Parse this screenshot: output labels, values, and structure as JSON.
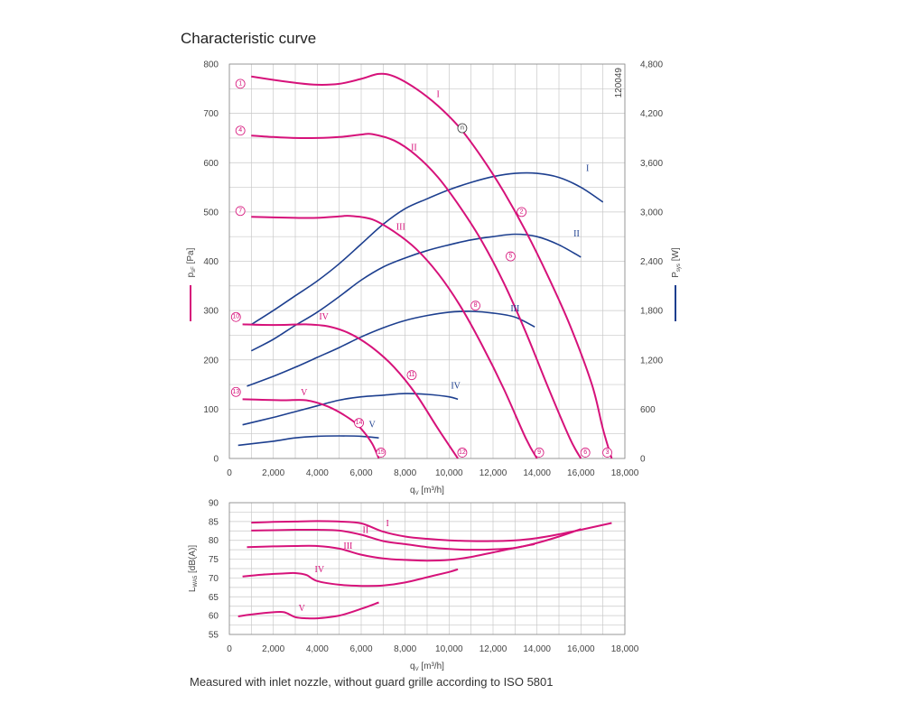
{
  "title": "Characteristic curve",
  "footnote": "Measured with inlet nozzle, without guard grille according to ISO 5801",
  "chart_data": [
    {
      "type": "line",
      "id": "pressure-power",
      "xlabel_main": "q",
      "xlabel_sub": "V",
      "xlabel_unit": " [m³/h]",
      "ylabel_left_main": "p",
      "ylabel_left_sub": "sF",
      "ylabel_left_unit": " [Pa]",
      "ylabel_right_main": "P",
      "ylabel_right_sub": "sys",
      "ylabel_right_unit": " [W]",
      "code": "120049",
      "xlim": [
        0,
        18000
      ],
      "ylim_left": [
        0,
        800
      ],
      "ylim_right": [
        0,
        4800
      ],
      "x_ticks": [
        "0",
        "2,000",
        "4,000",
        "6,000",
        "8,000",
        "10,000",
        "12,000",
        "14,000",
        "16,000",
        "18,000"
      ],
      "y_ticks_left": [
        "0",
        "100",
        "200",
        "300",
        "400",
        "500",
        "600",
        "700",
        "800"
      ],
      "y_ticks_right": [
        "0",
        "600",
        "1,200",
        "1,800",
        "2,400",
        "3,000",
        "3,600",
        "4,200",
        "4,800"
      ],
      "grid": true,
      "pressure_series": [
        {
          "name": "I",
          "x": [
            1000,
            2000,
            3000,
            4000,
            5000,
            6000,
            6800,
            7500,
            8500,
            9500,
            10500,
            11500,
            12500,
            13500,
            14500,
            15500,
            16500,
            17000,
            17400
          ],
          "y": [
            775,
            768,
            762,
            758,
            760,
            770,
            780,
            775,
            750,
            715,
            670,
            610,
            540,
            460,
            370,
            270,
            150,
            60,
            0
          ]
        },
        {
          "name": "II",
          "x": [
            1000,
            2000,
            3000,
            4000,
            5000,
            6000,
            6500,
            7500,
            8500,
            9500,
            10500,
            11500,
            12500,
            13500,
            14500,
            15500,
            16000
          ],
          "y": [
            655,
            652,
            650,
            650,
            652,
            657,
            658,
            645,
            615,
            570,
            510,
            440,
            355,
            255,
            145,
            40,
            0
          ]
        },
        {
          "name": "III",
          "x": [
            1000,
            2000,
            3000,
            4000,
            5000,
            5500,
            6500,
            7500,
            8500,
            9500,
            10500,
            11500,
            12500,
            13500,
            14000
          ],
          "y": [
            490,
            489,
            488,
            488,
            491,
            492,
            485,
            460,
            425,
            375,
            310,
            230,
            140,
            40,
            0
          ]
        },
        {
          "name": "IV",
          "x": [
            600,
            1500,
            2500,
            3500,
            4500,
            5500,
            6500,
            7500,
            8500,
            9500,
            10400
          ],
          "y": [
            272,
            271,
            271,
            272,
            268,
            253,
            225,
            185,
            130,
            60,
            0
          ]
        },
        {
          "name": "V",
          "x": [
            600,
            1500,
            2500,
            3500,
            4500,
            5500,
            6000,
            6500,
            6800
          ],
          "y": [
            120,
            119,
            118,
            118,
            105,
            80,
            60,
            30,
            0
          ]
        }
      ],
      "power_series": [
        {
          "name": "I",
          "x": [
            1000,
            2000,
            3000,
            4000,
            5000,
            6000,
            7000,
            8000,
            9000,
            10000,
            11000,
            12000,
            13000,
            14000,
            15000,
            16000,
            17000
          ],
          "y": [
            1630,
            1800,
            1980,
            2160,
            2370,
            2610,
            2850,
            3040,
            3160,
            3270,
            3360,
            3430,
            3470,
            3470,
            3420,
            3300,
            3120
          ]
        },
        {
          "name": "II",
          "x": [
            1000,
            2000,
            3000,
            4000,
            5000,
            6000,
            7000,
            8000,
            9000,
            10000,
            11000,
            12000,
            13000,
            14000,
            15000,
            16000
          ],
          "y": [
            1310,
            1450,
            1620,
            1780,
            1970,
            2170,
            2330,
            2440,
            2530,
            2600,
            2660,
            2700,
            2730,
            2700,
            2600,
            2450
          ]
        },
        {
          "name": "III",
          "x": [
            800,
            2000,
            3000,
            4000,
            5000,
            6000,
            7000,
            8000,
            9000,
            10000,
            11000,
            12000,
            13000,
            13900
          ],
          "y": [
            880,
            1000,
            1110,
            1230,
            1350,
            1480,
            1590,
            1680,
            1740,
            1780,
            1790,
            1770,
            1720,
            1600
          ]
        },
        {
          "name": "IV",
          "x": [
            600,
            2000,
            3000,
            4000,
            5000,
            6000,
            7000,
            8000,
            9000,
            10000,
            10400
          ],
          "y": [
            410,
            500,
            570,
            640,
            710,
            750,
            770,
            790,
            780,
            750,
            720
          ]
        },
        {
          "name": "V",
          "x": [
            400,
            2000,
            3000,
            4000,
            5000,
            6000,
            6800
          ],
          "y": [
            160,
            210,
            250,
            270,
            275,
            270,
            250
          ]
        }
      ],
      "series_labels": [
        {
          "text": "I",
          "color": "#d6127a",
          "x": 9500,
          "y": 733
        },
        {
          "text": "II",
          "color": "#d6127a",
          "x": 8400,
          "y": 625
        },
        {
          "text": "III",
          "color": "#d6127a",
          "x": 7800,
          "y": 464
        },
        {
          "text": "IV",
          "color": "#d6127a",
          "x": 4300,
          "y": 282
        },
        {
          "text": "V",
          "color": "#d6127a",
          "x": 3400,
          "y": 128
        },
        {
          "text": "I",
          "color": "#1d3f8f",
          "x": 16300,
          "y": 3500
        },
        {
          "text": "II",
          "color": "#1d3f8f",
          "x": 15800,
          "y": 2700
        },
        {
          "text": "III",
          "color": "#1d3f8f",
          "x": 13000,
          "y": 1790
        },
        {
          "text": "IV",
          "color": "#1d3f8f",
          "x": 10300,
          "y": 850
        },
        {
          "text": "V",
          "color": "#1d3f8f",
          "x": 6500,
          "y": 380
        }
      ],
      "markers": [
        {
          "num": "1",
          "x": 500,
          "y": 760
        },
        {
          "num": "2",
          "x": 13300,
          "y": 500
        },
        {
          "num": "3",
          "x": 17200,
          "y": 12
        },
        {
          "num": "4",
          "x": 500,
          "y": 665
        },
        {
          "num": "5",
          "x": 12800,
          "y": 410
        },
        {
          "num": "6",
          "x": 16200,
          "y": 12
        },
        {
          "num": "7",
          "x": 500,
          "y": 502
        },
        {
          "num": "8",
          "x": 11200,
          "y": 310
        },
        {
          "num": "9",
          "x": 14100,
          "y": 12
        },
        {
          "num": "10",
          "x": 300,
          "y": 287
        },
        {
          "num": "11",
          "x": 8300,
          "y": 169
        },
        {
          "num": "12",
          "x": 10600,
          "y": 12
        },
        {
          "num": "13",
          "x": 300,
          "y": 135
        },
        {
          "num": "14",
          "x": 5900,
          "y": 72
        },
        {
          "num": "15",
          "x": 6900,
          "y": 12
        }
      ],
      "special_marker": {
        "num": "n",
        "x": 10600,
        "y": 670
      }
    },
    {
      "type": "line",
      "id": "sound-power",
      "xlabel_main": "q",
      "xlabel_sub": "V",
      "xlabel_unit": " [m³/h]",
      "ylabel_main": "L",
      "ylabel_sub": "WA5",
      "ylabel_unit": " [dB(A)]",
      "xlim": [
        0,
        18000
      ],
      "ylim": [
        55,
        90
      ],
      "x_ticks": [
        "0",
        "2,000",
        "4,000",
        "6,000",
        "8,000",
        "10,000",
        "12,000",
        "14,000",
        "16,000",
        "18,000"
      ],
      "y_ticks": [
        "55",
        "60",
        "65",
        "70",
        "75",
        "80",
        "85",
        "90"
      ],
      "grid": true,
      "series": [
        {
          "name": "I",
          "x": [
            1000,
            2000,
            3000,
            4000,
            5000,
            6000,
            7000,
            8000,
            9000,
            10000,
            11000,
            12000,
            13000,
            14000,
            15000,
            16000,
            17400
          ],
          "y": [
            84.7,
            84.9,
            85.0,
            85.1,
            85.0,
            84.5,
            82.3,
            81.0,
            80.4,
            80.0,
            79.8,
            79.8,
            80.0,
            80.6,
            81.6,
            82.8,
            84.6
          ]
        },
        {
          "name": "II",
          "x": [
            1000,
            2000,
            3000,
            4000,
            5000,
            6000,
            7000,
            8000,
            9000,
            10000,
            11000,
            12000,
            13000,
            14000,
            15000,
            16000
          ],
          "y": [
            82.6,
            82.7,
            82.8,
            82.8,
            82.6,
            81.5,
            79.8,
            79.0,
            78.2,
            77.7,
            77.5,
            77.6,
            78.0,
            79.3,
            81.0,
            83.0
          ]
        },
        {
          "name": "III",
          "x": [
            800,
            2000,
            3000,
            4000,
            5000,
            6000,
            7000,
            8000,
            9000,
            10000,
            11000,
            12000,
            13000,
            13900
          ],
          "y": [
            78.2,
            78.4,
            78.5,
            78.5,
            77.8,
            76.2,
            75.2,
            74.8,
            74.6,
            74.8,
            75.6,
            76.8,
            78.0,
            79.0
          ]
        },
        {
          "name": "IV",
          "x": [
            600,
            1500,
            2500,
            3000,
            3500,
            4000,
            5000,
            6000,
            7000,
            8000,
            9000,
            10000,
            10400
          ],
          "y": [
            70.4,
            70.9,
            71.2,
            71.3,
            70.8,
            69.2,
            68.2,
            67.9,
            68.0,
            68.8,
            70.2,
            71.6,
            72.3
          ]
        },
        {
          "name": "V",
          "x": [
            400,
            1000,
            2000,
            2500,
            3000,
            3500,
            4000,
            5000,
            6000,
            6800
          ],
          "y": [
            59.8,
            60.3,
            60.9,
            60.9,
            59.6,
            59.3,
            59.3,
            60.0,
            61.8,
            63.5
          ]
        }
      ],
      "series_labels": [
        {
          "text": "I",
          "x": 7200,
          "y": 83.8
        },
        {
          "text": "II",
          "x": 6200,
          "y": 82.0
        },
        {
          "text": "III",
          "x": 5400,
          "y": 77.8
        },
        {
          "text": "IV",
          "x": 4100,
          "y": 71.5
        },
        {
          "text": "V",
          "x": 3300,
          "y": 61.2
        }
      ]
    }
  ]
}
